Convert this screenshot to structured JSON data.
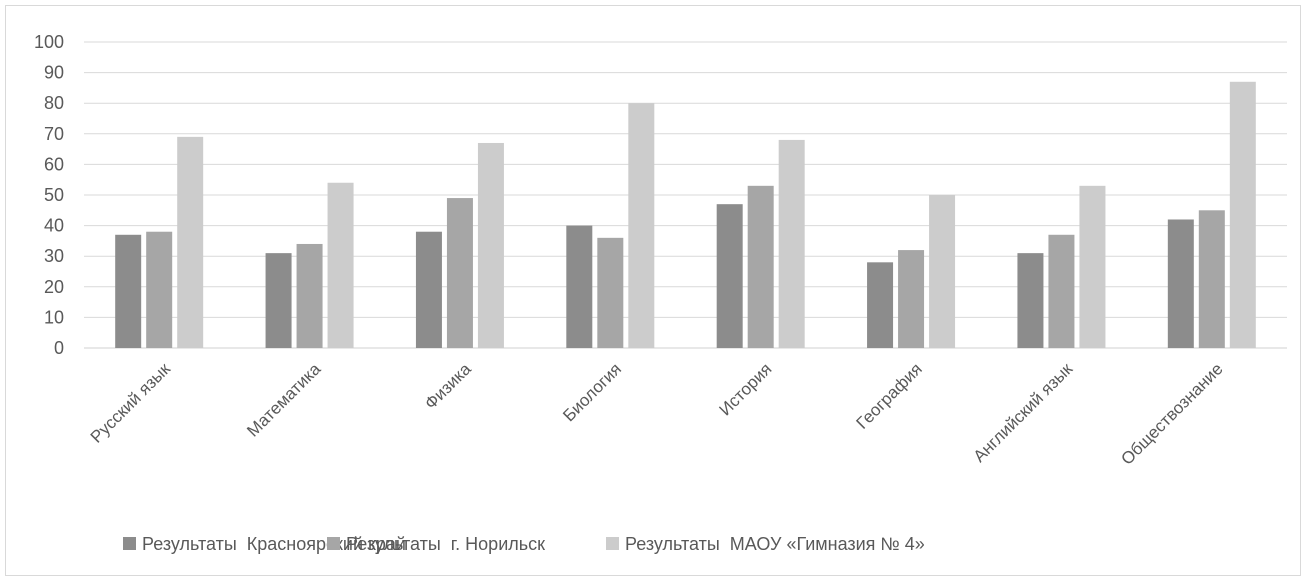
{
  "chart_data": {
    "type": "bar",
    "categories": [
      "Русский язык",
      "Математика",
      "Физика",
      "Биология",
      "История",
      "География",
      "Английский язык",
      "Обществознание"
    ],
    "series": [
      {
        "name": "Результаты  Красноярский край",
        "color": "#8c8c8c",
        "values": [
          37,
          31,
          38,
          40,
          47,
          28,
          31,
          42
        ]
      },
      {
        "name": "Результаты  г. Норильск",
        "color": "#a6a6a6",
        "values": [
          38,
          34,
          49,
          36,
          53,
          32,
          37,
          45
        ]
      },
      {
        "name": "Результаты  МАОУ «Гимназия № 4»",
        "color": "#cccccc",
        "values": [
          69,
          54,
          67,
          80,
          68,
          50,
          53,
          87
        ]
      }
    ],
    "yticks": [
      0,
      10,
      20,
      30,
      40,
      50,
      60,
      70,
      80,
      90,
      100
    ],
    "ylim": [
      0,
      100
    ],
    "grid": true,
    "legend_position": "bottom"
  }
}
